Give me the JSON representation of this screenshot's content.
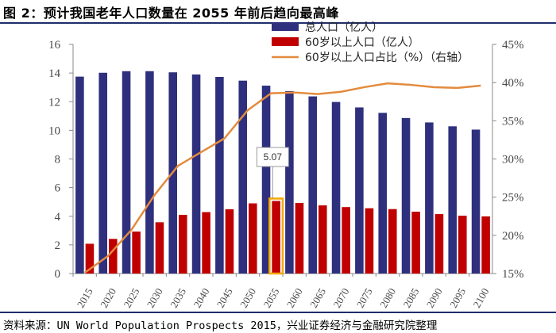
{
  "title": "图 2：预计我国老年人口数量在 2055 年前后趋向最高峰",
  "source": "资料来源：UN World Population Prospects 2015，兴业证券经济与金融研究院整理",
  "colors": {
    "total": "#2e2f7d",
    "elderly": "#c00000",
    "ratio": "#e38b3e",
    "rule": "#1f2d6b",
    "highlight": "#f5a800"
  },
  "chart_data": {
    "type": "bar",
    "categories": [
      "2015",
      "2020",
      "2025",
      "2030",
      "2035",
      "2040",
      "2045",
      "2050",
      "2055",
      "2060",
      "2065",
      "2070",
      "2075",
      "2080",
      "2085",
      "2090",
      "2095",
      "2100"
    ],
    "series": [
      {
        "name": "总人口（亿人）",
        "type": "bar",
        "axis": "left",
        "values": [
          13.75,
          14.02,
          14.13,
          14.13,
          14.05,
          13.9,
          13.73,
          13.47,
          13.12,
          12.74,
          12.37,
          11.98,
          11.6,
          11.22,
          10.86,
          10.55,
          10.28,
          10.05
        ]
      },
      {
        "name": "60岁以上人口（亿人）",
        "type": "bar",
        "axis": "left",
        "values": [
          2.08,
          2.42,
          2.93,
          3.58,
          4.1,
          4.29,
          4.49,
          4.9,
          5.07,
          4.93,
          4.76,
          4.64,
          4.56,
          4.5,
          4.32,
          4.15,
          4.04,
          3.99
        ]
      },
      {
        "name": "60岁以上人口占比（%）（右轴）",
        "type": "line",
        "axis": "right",
        "values": [
          15.1,
          17.3,
          20.7,
          25.3,
          29.1,
          30.9,
          32.7,
          36.4,
          38.6,
          38.7,
          38.5,
          38.8,
          39.4,
          39.9,
          39.7,
          39.4,
          39.3,
          39.6
        ]
      }
    ],
    "y_left": {
      "min": 0,
      "max": 16,
      "ticks": [
        0,
        2,
        4,
        6,
        8,
        10,
        12,
        14,
        16
      ]
    },
    "y_right": {
      "min": 15,
      "max": 45,
      "ticks": [
        "15%",
        "20%",
        "25%",
        "30%",
        "35%",
        "40%",
        "45%"
      ]
    },
    "annotation": {
      "category": "2055",
      "text": "5.07"
    },
    "legend_position": "top-right",
    "grid": false
  }
}
